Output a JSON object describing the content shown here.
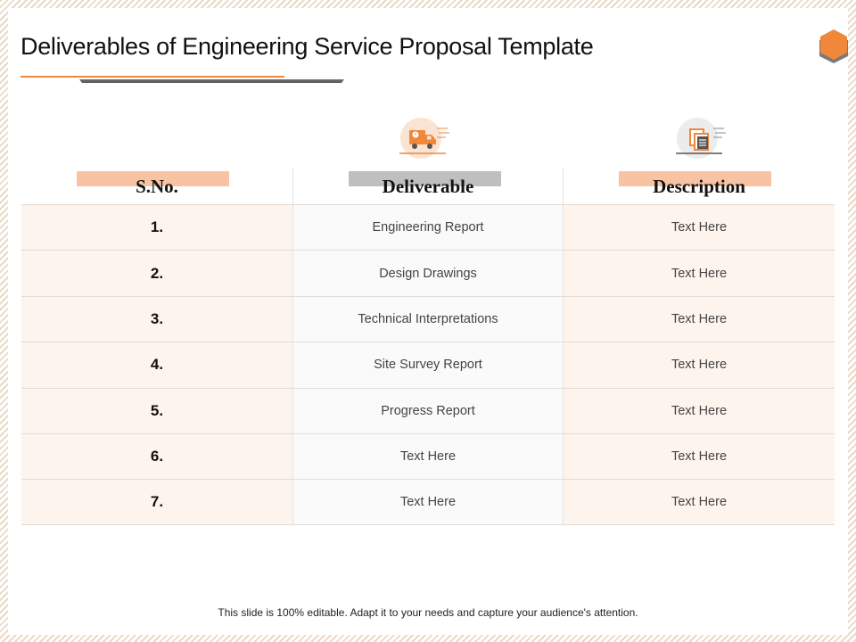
{
  "slide": {
    "title": "Deliverables of Engineering Service Proposal Template",
    "footer": "This slide is 100% editable. Adapt it to your needs and capture your audience's attention."
  },
  "colors": {
    "accent_orange": "#f0873a",
    "header_peach": "#f7c3a2",
    "header_gray": "#bfbfbf",
    "row_tint": "#fdf4ee"
  },
  "icons": {
    "column_2": "delivery-truck-icon",
    "column_3": "document-stack-icon",
    "logo": "hexagon-logo-icon"
  },
  "table": {
    "headers": [
      "S.No.",
      "Deliverable",
      "Description"
    ],
    "rows": [
      {
        "sno": "1.",
        "deliverable": "Engineering Report",
        "description": "Text Here"
      },
      {
        "sno": "2.",
        "deliverable": "Design Drawings",
        "description": "Text Here"
      },
      {
        "sno": "3.",
        "deliverable": "Technical Interpretations",
        "description": "Text Here"
      },
      {
        "sno": "4.",
        "deliverable": "Site Survey Report",
        "description": "Text Here"
      },
      {
        "sno": "5.",
        "deliverable": "Progress Report",
        "description": "Text Here"
      },
      {
        "sno": "6.",
        "deliverable": "Text Here",
        "description": "Text Here"
      },
      {
        "sno": "7.",
        "deliverable": "Text Here",
        "description": "Text Here"
      }
    ]
  }
}
